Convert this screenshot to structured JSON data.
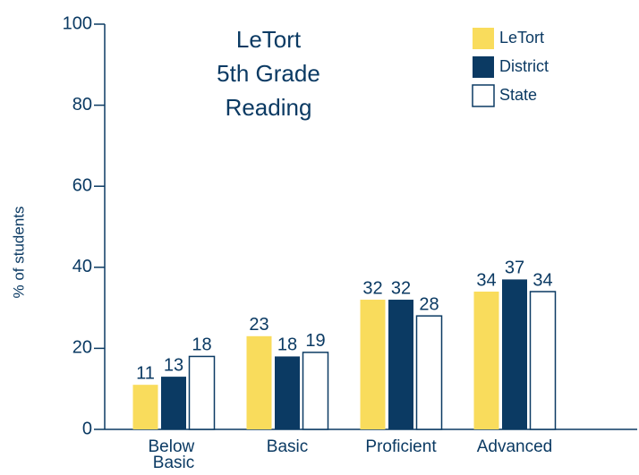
{
  "chart_data": {
    "type": "bar",
    "title": [
      "LeTort",
      "5th Grade",
      "Reading"
    ],
    "y_label": "% of students",
    "categories": [
      "Below Basic",
      "Basic",
      "Proficient",
      "Advanced"
    ],
    "series": [
      {
        "name": "LeTort",
        "color": "#f9dc5c",
        "values": [
          11,
          23,
          32,
          34
        ]
      },
      {
        "name": "District",
        "color": "#0b3a63",
        "values": [
          13,
          18,
          32,
          37
        ]
      },
      {
        "name": "State",
        "color": "#ffffff",
        "values": [
          18,
          19,
          28,
          34
        ]
      }
    ],
    "ylim": [
      0,
      100
    ],
    "yticks": [
      0,
      20,
      40,
      60,
      80,
      100
    ],
    "legend": "top-right"
  }
}
